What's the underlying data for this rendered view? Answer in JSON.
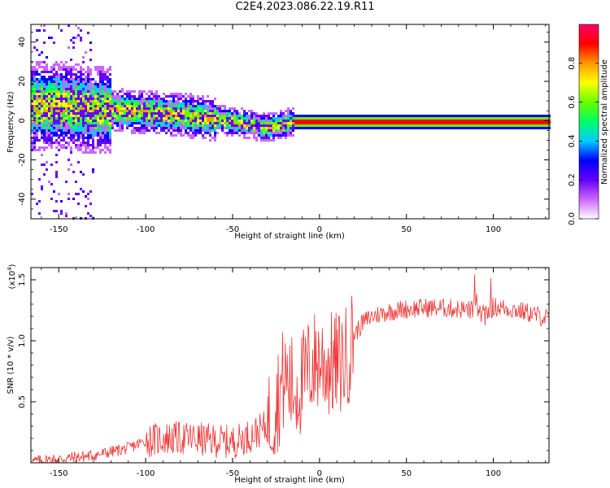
{
  "title": "C2E4.2023.086.22.19.R11",
  "chart_data": [
    {
      "type": "heatmap",
      "xlabel": "Height of straight line (km)",
      "ylabel": "Frequency (Hz)",
      "xlim": [
        -166,
        132
      ],
      "ylim": [
        -50,
        49
      ],
      "x_ticks": [
        -150,
        -100,
        -50,
        0,
        50,
        100
      ],
      "y_ticks": [
        -40,
        -20,
        0,
        20,
        40
      ],
      "colorbar": {
        "label": "Normalized spectral amplitude",
        "range": [
          0,
          1
        ],
        "ticks": [
          0.0,
          0.2,
          0.4,
          0.6,
          0.8
        ],
        "colors": [
          "#ffffff",
          "#cc66ff",
          "#6600ff",
          "#0000ff",
          "#00ccff",
          "#00ff66",
          "#66ff00",
          "#ffff00",
          "#ff9900",
          "#ff0000",
          "#ff0066"
        ]
      },
      "ridge": [
        {
          "x": -150,
          "y": 8
        },
        {
          "x": -125,
          "y": 6
        },
        {
          "x": -100,
          "y": 5
        },
        {
          "x": -75,
          "y": 3
        },
        {
          "x": -50,
          "y": 0
        },
        {
          "x": -30,
          "y": -3
        },
        {
          "x": -15,
          "y": 0
        },
        {
          "x": 0,
          "y": 0
        },
        {
          "x": 130,
          "y": 0
        }
      ],
      "grid": false
    },
    {
      "type": "line",
      "xlabel": "Height of straight line (km)",
      "ylabel": "SNR (10 * v/v)",
      "y_scale_label": "(x10",
      "y_scale_exp": "4",
      "xlim": [
        -166,
        132
      ],
      "ylim": [
        0.0,
        1.6
      ],
      "x_ticks": [
        -150,
        -100,
        -50,
        0,
        50,
        100
      ],
      "y_ticks": [
        0.5,
        1.0,
        1.5
      ],
      "color": "#ee3333",
      "series": [
        {
          "x": [
            -166,
            -150,
            -130,
            -110,
            -100,
            -90,
            -75,
            -60,
            -50,
            -40,
            -30,
            -25,
            -20,
            -15,
            -10,
            -5,
            0,
            5,
            10,
            15,
            20,
            25,
            30,
            40,
            50,
            60,
            70,
            80,
            90,
            95,
            100,
            110,
            120,
            132
          ],
          "y": [
            0.01,
            0.03,
            0.06,
            0.12,
            0.18,
            0.2,
            0.2,
            0.18,
            0.17,
            0.22,
            0.3,
            0.5,
            0.7,
            0.6,
            0.65,
            0.8,
            0.85,
            0.8,
            0.8,
            0.85,
            1.05,
            1.15,
            1.2,
            1.24,
            1.26,
            1.27,
            1.27,
            1.26,
            1.25,
            1.2,
            1.28,
            1.26,
            1.23,
            1.18
          ]
        }
      ],
      "grid": false
    }
  ]
}
